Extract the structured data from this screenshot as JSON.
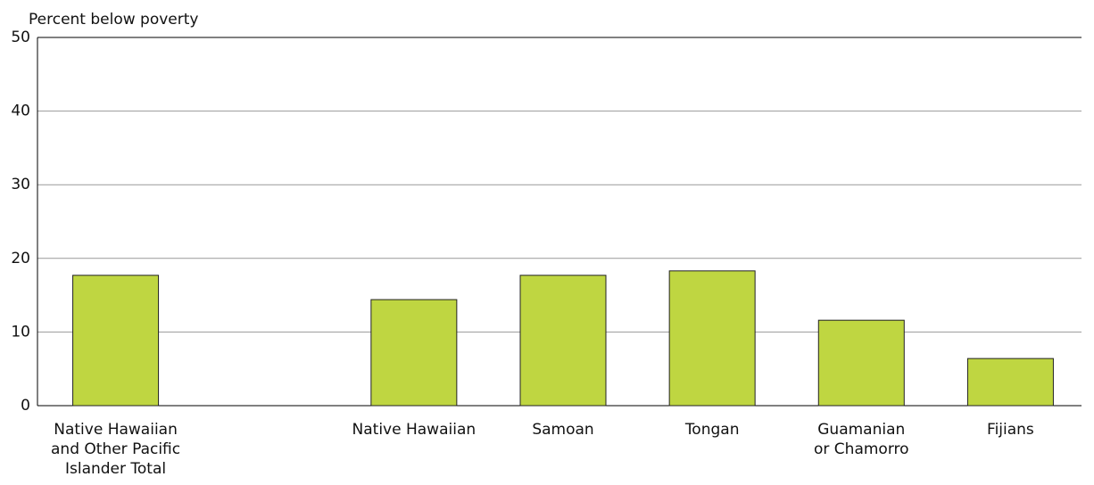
{
  "chart_data": {
    "type": "bar",
    "ylabel": "Percent below poverty",
    "categories": [
      "Native Hawaiian\nand Other Pacific\nIslander Total",
      null,
      "Native Hawaiian",
      "Samoan",
      "Tongan",
      "Guamanian\nor Chamorro",
      "Fijians"
    ],
    "values": [
      17.7,
      null,
      14.4,
      17.7,
      18.3,
      11.6,
      6.4
    ],
    "color": "#bfd641",
    "ylim": [
      0,
      50
    ],
    "yticks": [
      0,
      10,
      20,
      30,
      40,
      50
    ],
    "grid": true
  }
}
